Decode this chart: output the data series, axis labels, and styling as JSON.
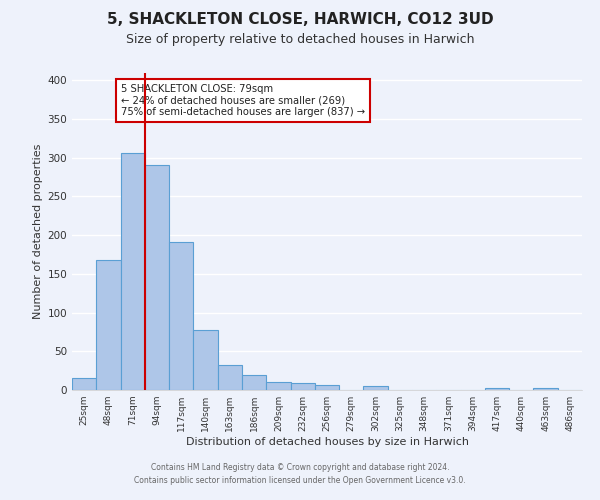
{
  "title": "5, SHACKLETON CLOSE, HARWICH, CO12 3UD",
  "subtitle": "Size of property relative to detached houses in Harwich",
  "xlabel": "Distribution of detached houses by size in Harwich",
  "ylabel": "Number of detached properties",
  "bar_labels": [
    "25sqm",
    "48sqm",
    "71sqm",
    "94sqm",
    "117sqm",
    "140sqm",
    "163sqm",
    "186sqm",
    "209sqm",
    "232sqm",
    "256sqm",
    "279sqm",
    "302sqm",
    "325sqm",
    "348sqm",
    "371sqm",
    "394sqm",
    "417sqm",
    "440sqm",
    "463sqm",
    "486sqm"
  ],
  "bar_values": [
    15,
    168,
    306,
    290,
    191,
    77,
    32,
    19,
    10,
    9,
    6,
    0,
    5,
    0,
    0,
    0,
    0,
    3,
    0,
    3,
    0
  ],
  "bar_color": "#aec6e8",
  "bar_edge_color": "#5a9fd4",
  "vline_x": 2.5,
  "vline_color": "#cc0000",
  "ylim": [
    0,
    410
  ],
  "yticks": [
    0,
    50,
    100,
    150,
    200,
    250,
    300,
    350,
    400
  ],
  "background_color": "#eef2fb",
  "grid_color": "#ffffff",
  "annotation_text": "5 SHACKLETON CLOSE: 79sqm\n← 24% of detached houses are smaller (269)\n75% of semi-detached houses are larger (837) →",
  "annotation_box_color": "#ffffff",
  "annotation_box_edge": "#cc0000",
  "footer1": "Contains HM Land Registry data © Crown copyright and database right 2024.",
  "footer2": "Contains public sector information licensed under the Open Government Licence v3.0.",
  "title_fontsize": 11,
  "subtitle_fontsize": 9,
  "tick_fontsize": 6.5,
  "ylabel_fontsize": 8,
  "xlabel_fontsize": 8
}
